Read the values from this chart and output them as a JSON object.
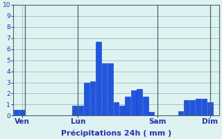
{
  "bar_values": [
    0.5,
    0.5,
    0,
    0,
    0,
    0,
    0,
    0,
    0,
    0,
    0.9,
    0.9,
    3.0,
    3.1,
    6.7,
    4.7,
    4.7,
    1.2,
    0.9,
    1.7,
    2.3,
    2.4,
    1.7,
    0.35,
    0,
    0,
    0,
    0,
    0.4,
    1.4,
    1.4,
    1.5,
    1.5,
    1.2,
    0
  ],
  "bar_color": "#0033cc",
  "bar_color2": "#2255dd",
  "n_bars": 35,
  "xtick_positions": [
    1.0,
    10.5,
    24.0,
    33.0
  ],
  "xtick_labels": [
    "Ven",
    "Lun",
    "Sam",
    "Dim"
  ],
  "vline_positions": [
    1.5,
    10.5,
    24.0,
    33.0
  ],
  "xlabel": "Précipitations 24h ( mm )",
  "ylim": [
    0,
    10
  ],
  "yticks": [
    0,
    1,
    2,
    3,
    4,
    5,
    6,
    7,
    8,
    9,
    10
  ],
  "background_color": "#dff2f2",
  "grid_color": "#99bbbb",
  "tick_label_color": "#2233aa",
  "xlabel_color": "#2233aa",
  "yticklabel_fontsize": 6.5,
  "xticklabel_fontsize": 7.5,
  "xlabel_fontsize": 8.0
}
